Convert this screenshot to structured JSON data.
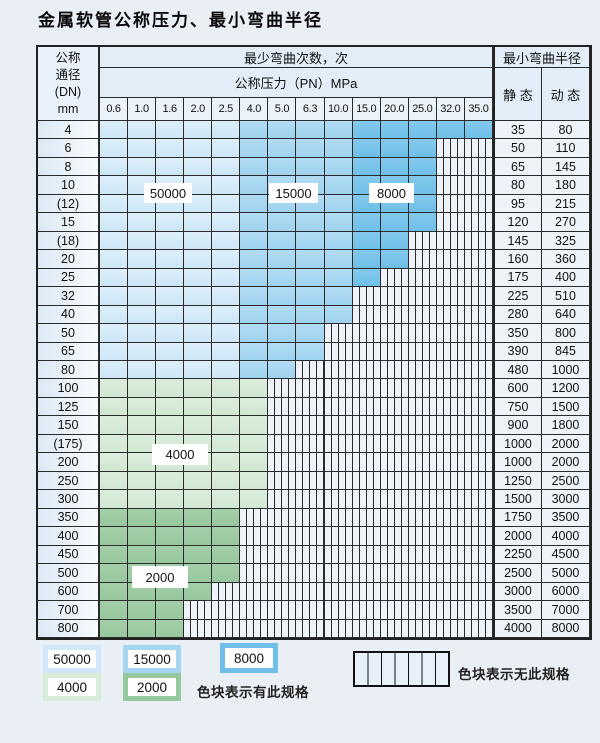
{
  "title": "金属软管公称压力、最小弯曲半径",
  "table": {
    "header": {
      "dn_label_lines": [
        "公称",
        "通径",
        "(DN)",
        "mm"
      ],
      "bend_cycles_label": "最少弯曲次数，次",
      "pressure_label": "公称压力（PN）MPa",
      "radius_label": "最小弯曲半径",
      "static_label": "静 态",
      "dynamic_label": "动 态",
      "pressure_columns": [
        "0.6",
        "1.0",
        "1.6",
        "2.0",
        "2.5",
        "4.0",
        "5.0",
        "6.3",
        "10.0",
        "15.0",
        "20.0",
        "25.0",
        "32.0",
        "35.0"
      ]
    },
    "rows": [
      {
        "dn": "4",
        "shade": "blue",
        "colored": 14,
        "static": "35",
        "dynamic": "80"
      },
      {
        "dn": "6",
        "shade": "blue",
        "colored": 12,
        "static": "50",
        "dynamic": "110"
      },
      {
        "dn": "8",
        "shade": "blue",
        "colored": 12,
        "static": "65",
        "dynamic": "145"
      },
      {
        "dn": "10",
        "shade": "blue",
        "colored": 12,
        "static": "80",
        "dynamic": "180"
      },
      {
        "dn": "(12)",
        "shade": "blue",
        "colored": 12,
        "static": "95",
        "dynamic": "215"
      },
      {
        "dn": "15",
        "shade": "blue",
        "colored": 12,
        "static": "120",
        "dynamic": "270"
      },
      {
        "dn": "(18)",
        "shade": "blue",
        "colored": 11,
        "static": "145",
        "dynamic": "325"
      },
      {
        "dn": "20",
        "shade": "blue",
        "colored": 11,
        "static": "160",
        "dynamic": "360"
      },
      {
        "dn": "25",
        "shade": "blue",
        "colored": 10,
        "static": "175",
        "dynamic": "400"
      },
      {
        "dn": "32",
        "shade": "blue",
        "colored": 9,
        "static": "225",
        "dynamic": "510"
      },
      {
        "dn": "40",
        "shade": "blue",
        "colored": 9,
        "static": "280",
        "dynamic": "640"
      },
      {
        "dn": "50",
        "shade": "blue",
        "colored": 8,
        "static": "350",
        "dynamic": "800"
      },
      {
        "dn": "65",
        "shade": "blue",
        "colored": 8,
        "static": "390",
        "dynamic": "845"
      },
      {
        "dn": "80",
        "shade": "blue",
        "colored": 7,
        "static": "480",
        "dynamic": "1000"
      },
      {
        "dn": "100",
        "shade": "green-light",
        "colored": 6,
        "static": "600",
        "dynamic": "1200"
      },
      {
        "dn": "125",
        "shade": "green-light",
        "colored": 6,
        "static": "750",
        "dynamic": "1500"
      },
      {
        "dn": "150",
        "shade": "green-light",
        "colored": 6,
        "static": "900",
        "dynamic": "1800"
      },
      {
        "dn": "(175)",
        "shade": "green-light",
        "colored": 6,
        "static": "1000",
        "dynamic": "2000"
      },
      {
        "dn": "200",
        "shade": "green-light",
        "colored": 6,
        "static": "1000",
        "dynamic": "2000"
      },
      {
        "dn": "250",
        "shade": "green-light",
        "colored": 6,
        "static": "1250",
        "dynamic": "2500"
      },
      {
        "dn": "300",
        "shade": "green-light",
        "colored": 6,
        "static": "1500",
        "dynamic": "3000"
      },
      {
        "dn": "350",
        "shade": "green-dark",
        "colored": 5,
        "static": "1750",
        "dynamic": "3500"
      },
      {
        "dn": "400",
        "shade": "green-dark",
        "colored": 5,
        "static": "2000",
        "dynamic": "4000"
      },
      {
        "dn": "450",
        "shade": "green-dark",
        "colored": 5,
        "static": "2250",
        "dynamic": "4500"
      },
      {
        "dn": "500",
        "shade": "green-dark",
        "colored": 5,
        "static": "2500",
        "dynamic": "5000"
      },
      {
        "dn": "600",
        "shade": "green-dark",
        "colored": 4,
        "static": "3000",
        "dynamic": "6000"
      },
      {
        "dn": "700",
        "shade": "green-dark",
        "colored": 3,
        "static": "3500",
        "dynamic": "7000"
      },
      {
        "dn": "800",
        "shade": "green-dark",
        "colored": 3,
        "static": "4000",
        "dynamic": "8000"
      }
    ]
  },
  "zone_labels": [
    {
      "text": "50000"
    },
    {
      "text": "15000"
    },
    {
      "text": "8000"
    },
    {
      "text": "4000"
    },
    {
      "text": "2000"
    }
  ],
  "legend": {
    "swatches": [
      {
        "label": "50000",
        "color": "#cfe7f7"
      },
      {
        "label": "15000",
        "color": "#a4d5f1"
      },
      {
        "label": "8000",
        "color": "#6fbfe8"
      },
      {
        "label": "4000",
        "color": "#d8ecd9"
      },
      {
        "label": "2000",
        "color": "#94c89e"
      }
    ],
    "available_note": "色块表示有此规格",
    "unavailable_note": "色块表示无此规格"
  },
  "colors": {
    "blue_light": "#cfe7f7",
    "blue_medium": "#a4d5f1",
    "blue_dark": "#6fbfe8",
    "green_light": "#d7ebd8",
    "green_dark": "#9ccaa2",
    "striped_bg": "#eef3fa",
    "grid_line": "#2b2b2b",
    "page_bg": "#e9eff4"
  }
}
